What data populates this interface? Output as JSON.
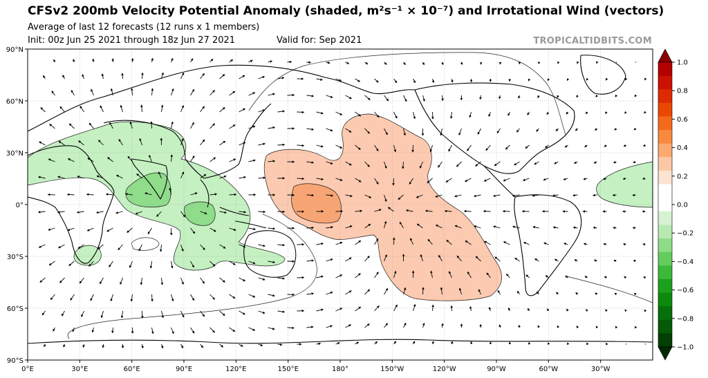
{
  "header": {
    "title": "CFSv2 200mb Velocity Potential Anomaly (shaded, m²s⁻¹ × 10⁻⁷) and Irrotational Wind (vectors)",
    "subtitle": "Average of last 12 forecasts (12 runs x 1 members)",
    "init": "Init: 00z Jun 25 2021 through 18z Jun 27 2021",
    "valid": "Valid for: Sep 2021",
    "brand": "TROPICALTIDBITS.COM"
  },
  "map": {
    "projection": "equirectangular",
    "center_longitude": 180,
    "lon_range": [
      0,
      360
    ],
    "lat_range": [
      -90,
      90
    ],
    "lat_labels": [
      "90°N",
      "60°N",
      "30°N",
      "0°",
      "30°S",
      "60°S",
      "90°S"
    ],
    "lon_labels": [
      "0°E",
      "30°E",
      "60°E",
      "90°E",
      "120°E",
      "150°E",
      "180°",
      "150°W",
      "120°W",
      "90°W",
      "60°W",
      "30°W"
    ]
  },
  "colorbar": {
    "ticks": [
      "1.0",
      "0.8",
      "0.6",
      "0.4",
      "0.2",
      "0.0",
      "−0.2",
      "−0.4",
      "−0.6",
      "−0.8",
      "−1.0"
    ],
    "colors": [
      "#b30000",
      "#cc1100",
      "#dd2a00",
      "#ea4800",
      "#f46a1a",
      "#f88a40",
      "#fbaa72",
      "#fcc8a6",
      "#fde3d2",
      "#ffffff",
      "#ffffff",
      "#d6f2d2",
      "#b8e9b2",
      "#8fdc88",
      "#64cc5e",
      "#3cb83a",
      "#1ca11d",
      "#0c8a0e",
      "#06700a",
      "#045a07",
      "#023f04"
    ],
    "extend_top_color": "#8b0000",
    "extend_bottom_color": "#012a03"
  },
  "colors": {
    "positive_anomaly": "#fccab0",
    "positive_anomaly_strong": "#f7a574",
    "negative_anomaly": "#c5f0c2",
    "negative_anomaly_strong": "#8fdc8a"
  }
}
